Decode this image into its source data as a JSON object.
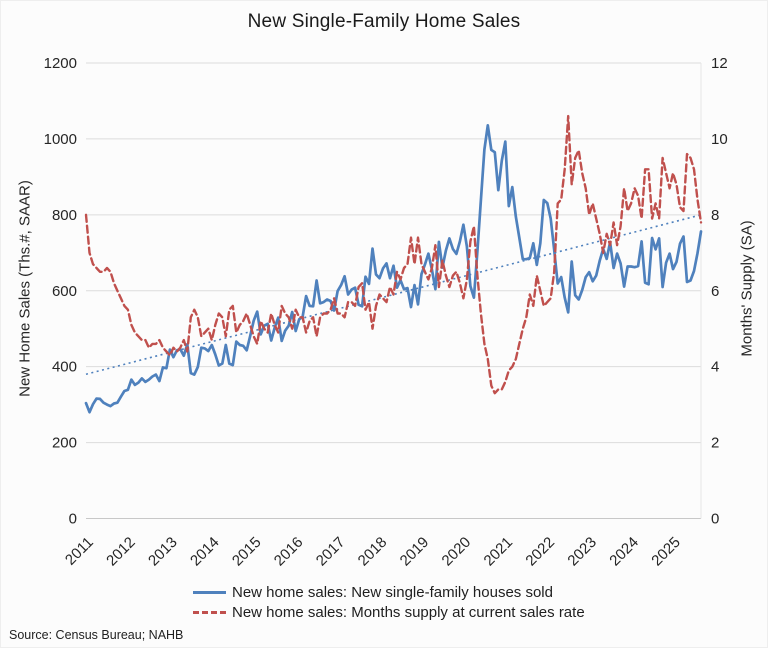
{
  "chart_data": {
    "type": "line",
    "title": "New Single-Family Home Sales",
    "source": "Source: Census Bureau; NAHB",
    "grid": "horizontal-only",
    "legend_position": "bottom-center",
    "colors": {
      "sales_line": "#4F81BD",
      "supply_line": "#C0504D",
      "trend_line": "#4F81BD",
      "gridline": "#dcdcdc",
      "axis_line": "#c8c8c8",
      "text": "#262626"
    },
    "left_axis": {
      "label": "New Home Sales (Ths.#, SAAR)",
      "min": 0,
      "max": 1200,
      "ticks": [
        0,
        200,
        400,
        600,
        800,
        1000,
        1200
      ]
    },
    "right_axis": {
      "label": "Months' Supply (SA)",
      "min": 0,
      "max": 12,
      "ticks": [
        0,
        2,
        4,
        6,
        8,
        10,
        12
      ]
    },
    "x_axis": {
      "start_month": "2011-01",
      "end_month": "2025-09",
      "tick_years": [
        "2011",
        "2012",
        "2013",
        "2014",
        "2015",
        "2016",
        "2017",
        "2018",
        "2019",
        "2020",
        "2021",
        "2022",
        "2023",
        "2024",
        "2025"
      ]
    },
    "series": [
      {
        "name": "New home sales: New single-family houses sold",
        "axis": "left",
        "style": "solid",
        "color": "#4F81BD",
        "values": [
          304,
          280,
          301,
          316,
          315,
          305,
          300,
          296,
          303,
          305,
          321,
          336,
          339,
          366,
          352,
          358,
          369,
          360,
          366,
          374,
          379,
          362,
          398,
          396,
          445,
          425,
          443,
          446,
          429,
          459,
          383,
          379,
          399,
          450,
          448,
          441,
          457,
          432,
          403,
          408,
          457,
          408,
          404,
          466,
          457,
          455,
          443,
          481,
          521,
          545,
          485,
          508,
          513,
          469,
          503,
          529,
          468,
          495,
          508,
          544,
          494,
          525,
          531,
          586,
          560,
          559,
          627,
          567,
          570,
          577,
          573,
          548,
          599,
          615,
          638,
          590,
          603,
          608,
          563,
          559,
          637,
          618,
          711,
          643,
          633,
          659,
          672,
          633,
          666,
          608,
          628,
          604,
          607,
          557,
          615,
          564,
          644,
          669,
          698,
          656,
          604,
          729,
          661,
          706,
          738,
          710,
          697,
          730,
          774,
          716,
          612,
          582,
          704,
          839,
          972,
          1036,
          971,
          965,
          865,
          943,
          993,
          823,
          873,
          796,
          740,
          683,
          683,
          686,
          725,
          668,
          725,
          839,
          831,
          790,
          707,
          619,
          636,
          582,
          543,
          677,
          588,
          577,
          602,
          636,
          649,
          625,
          640,
          679,
          710,
          684,
          728,
          660,
          698,
          672,
          611,
          664,
          664,
          662,
          665,
          730,
          621,
          617,
          739,
          709,
          738,
          610,
          674,
          698,
          657,
          676,
          724,
          743,
          623,
          627,
          652,
          699,
          756
        ]
      },
      {
        "name": "New home sales: Months supply at current sales rate",
        "axis": "right",
        "style": "dashed",
        "color": "#C0504D",
        "values": [
          8.0,
          7.0,
          6.7,
          6.6,
          6.5,
          6.5,
          6.6,
          6.5,
          6.2,
          6.0,
          5.8,
          5.6,
          5.5,
          5.1,
          4.9,
          4.8,
          4.7,
          4.7,
          4.5,
          4.6,
          4.6,
          4.7,
          4.5,
          4.4,
          4.3,
          4.5,
          4.4,
          4.5,
          4.7,
          4.4,
          5.3,
          5.5,
          5.3,
          4.8,
          4.9,
          5.0,
          4.7,
          5.1,
          5.4,
          5.3,
          4.8,
          5.5,
          5.6,
          4.9,
          5.1,
          5.2,
          5.4,
          5.1,
          4.8,
          4.6,
          5.2,
          5.0,
          4.9,
          5.4,
          5.1,
          4.9,
          5.6,
          5.4,
          5.3,
          5.0,
          5.5,
          5.3,
          5.3,
          4.9,
          5.2,
          5.3,
          4.8,
          5.3,
          5.4,
          5.4,
          5.5,
          5.8,
          5.4,
          5.4,
          5.3,
          5.7,
          5.7,
          5.6,
          6.1,
          6.2,
          5.5,
          5.7,
          5.0,
          5.6,
          5.9,
          5.8,
          5.7,
          6.1,
          5.9,
          6.5,
          6.3,
          6.6,
          6.7,
          7.4,
          6.7,
          7.4,
          6.7,
          6.5,
          6.3,
          6.6,
          7.2,
          6.1,
          6.8,
          6.4,
          6.1,
          6.4,
          6.5,
          6.2,
          5.8,
          6.3,
          7.3,
          7.7,
          6.4,
          5.4,
          4.6,
          4.2,
          3.5,
          3.3,
          3.4,
          3.4,
          3.6,
          3.9,
          4.0,
          4.2,
          4.6,
          5.0,
          5.3,
          5.9,
          5.6,
          6.4,
          6.0,
          5.6,
          5.7,
          5.8,
          6.5,
          8.3,
          8.4,
          9.2,
          10.6,
          8.8,
          9.5,
          9.7,
          9.1,
          8.7,
          8.0,
          8.3,
          7.9,
          7.5,
          7.0,
          7.5,
          7.2,
          7.8,
          7.2,
          7.7,
          8.7,
          8.1,
          8.3,
          8.7,
          8.5,
          7.9,
          9.2,
          9.2,
          7.9,
          8.3,
          7.9,
          9.5,
          9.1,
          8.7,
          9.1,
          8.8,
          8.2,
          8.1,
          9.6,
          9.5,
          9.2,
          8.4,
          7.8
        ]
      }
    ],
    "trendline": {
      "axis": "left",
      "style": "dotted",
      "color": "#4F81BD",
      "start_value": 380,
      "end_value": 800
    }
  }
}
